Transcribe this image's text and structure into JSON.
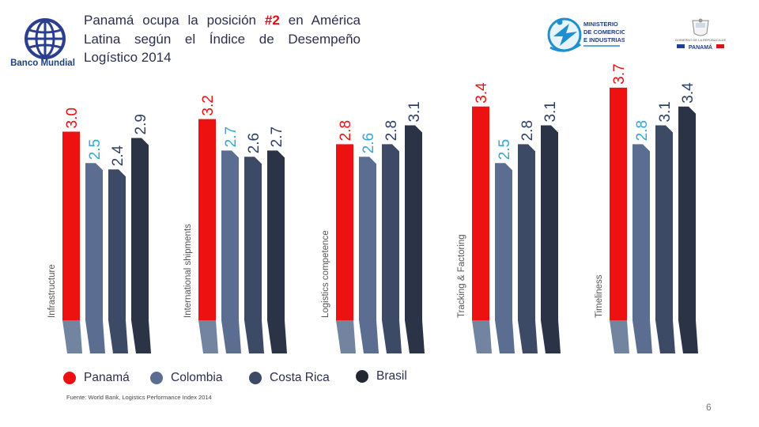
{
  "header": {
    "title_part1": "Panamá ocupa la posición ",
    "title_highlight": "#2",
    "title_part2": " en América Latina según el Índice de Desempeño Logístico 2014",
    "left_logo_text": "Banco Mundial",
    "right_logo_line1": "MINISTERIO",
    "right_logo_line2": "DE COMERCIO",
    "right_logo_line3": "E INDUSTRIAS",
    "gov_logo_small": "GOBIERNO DE LA REPÚBLICA DE",
    "gov_logo_name": "PANAMÁ"
  },
  "chart_data": {
    "type": "bar",
    "categories": [
      "Infrastructure",
      "International shipments",
      "Logistics competence",
      "Tracking & Factoring",
      "Timeliness"
    ],
    "series": [
      {
        "name": "Panamá",
        "color": "#ee1111",
        "values": [
          3.0,
          3.2,
          2.8,
          3.4,
          3.7
        ]
      },
      {
        "name": "Colombia",
        "color": "#5b6e91",
        "values": [
          2.5,
          2.7,
          2.6,
          2.5,
          2.8
        ]
      },
      {
        "name": "Costa  Rica",
        "color": "#3c4a66",
        "values": [
          2.4,
          2.6,
          2.8,
          2.8,
          3.1
        ]
      },
      {
        "name": "Brasil",
        "color": "#2a3446",
        "values": [
          2.9,
          2.7,
          3.1,
          3.1,
          3.4
        ]
      }
    ],
    "value_label_colors": [
      "#ee1111",
      "#2fa8d8",
      "#2d3f66",
      "#2d3f66"
    ],
    "value_labels": [
      [
        "3.0",
        "3.2",
        "2.8",
        "3.4",
        "3.7"
      ],
      [
        "2.5",
        "2.7",
        "2.6",
        "2.5",
        "2.8"
      ],
      [
        "2.4",
        "2.6",
        "2.8",
        "2.8",
        "3.1"
      ],
      [
        "2.9",
        "2.7",
        "3.1",
        "3.1",
        "3.4"
      ]
    ],
    "legend_position": "bottom-left",
    "grid": false
  },
  "footer": {
    "source": "Fuente: World Bank, Logistics Performance Index 2014",
    "page_number": "6"
  }
}
